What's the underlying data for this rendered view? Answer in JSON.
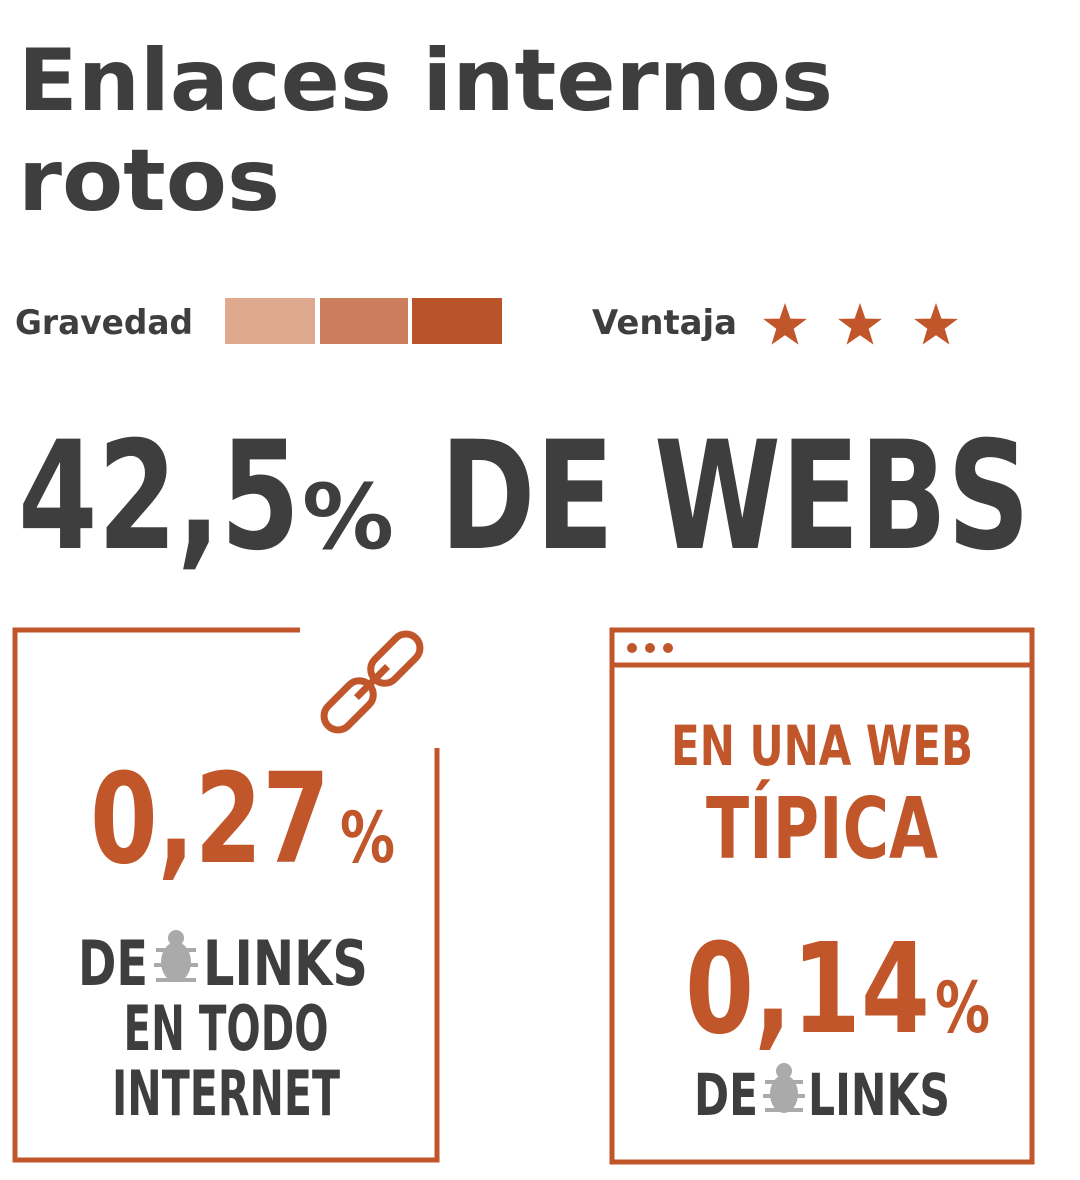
{
  "header": {
    "title_line1": "Enlaces internos",
    "title_line2": "rotos"
  },
  "rating": {
    "severity_label": "Gravedad",
    "advantage_label": "Ventaja"
  },
  "headline": {
    "number": "42,5",
    "unit": "%",
    "text": "DE WEBS"
  },
  "left_card": {
    "number": "0,27",
    "unit": "%",
    "line1_a": "DE",
    "line1_b": "LINKS",
    "line2": "EN TODO",
    "line3": "INTERNET"
  },
  "right_card": {
    "heading1": "EN UNA WEB",
    "heading2": "TÍPICA",
    "number": "0,14",
    "unit": "%",
    "line1_a": "DE",
    "line1_b": "LINKS"
  }
}
